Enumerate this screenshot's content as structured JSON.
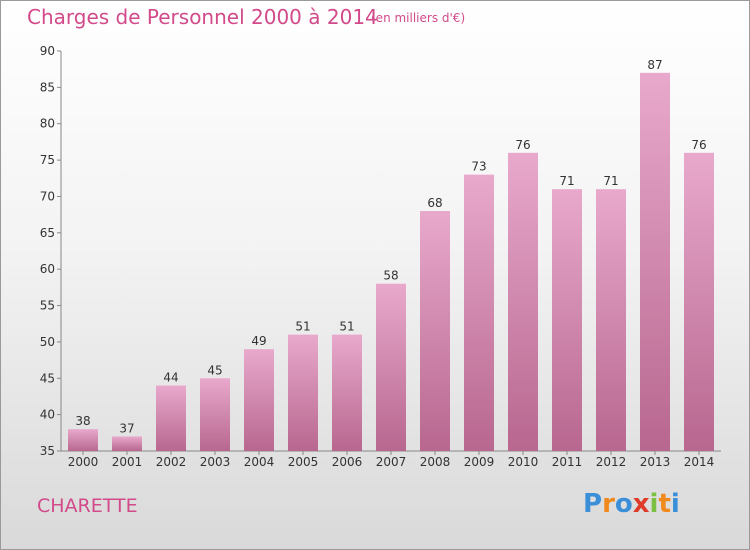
{
  "title": "Charges de Personnel 2000 à 2014",
  "subtitle": "(en milliers d'€)",
  "commune": "CHARETTE",
  "logo": {
    "text": "Proxiti",
    "letter_colors": [
      "#3a8fd8",
      "#f08a1c",
      "#3a8fd8",
      "#e03a2a",
      "#7cc043",
      "#f08a1c",
      "#3a8fd8"
    ]
  },
  "colors": {
    "bar_top": "#e8a9cc",
    "bar_bottom": "#b8678f",
    "accent": "#d24a8a"
  },
  "chart_data": {
    "type": "bar",
    "categories": [
      "2000",
      "2001",
      "2002",
      "2003",
      "2004",
      "2005",
      "2006",
      "2007",
      "2008",
      "2009",
      "2010",
      "2011",
      "2012",
      "2013",
      "2014"
    ],
    "values": [
      38,
      37,
      44,
      45,
      49,
      51,
      51,
      58,
      68,
      73,
      76,
      71,
      71,
      87,
      76
    ],
    "title": "Charges de Personnel 2000 à 2014",
    "subtitle": "(en milliers d'€)",
    "xlabel": "",
    "ylabel": "",
    "ylim": [
      35,
      90
    ],
    "yticks": [
      35,
      40,
      45,
      50,
      55,
      60,
      65,
      70,
      75,
      80,
      85,
      90
    ],
    "grid": false,
    "data_labels": true
  }
}
